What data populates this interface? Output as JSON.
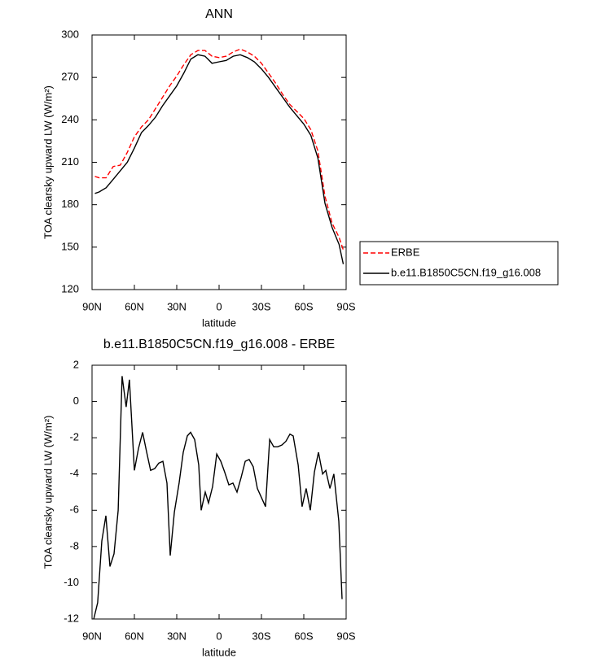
{
  "chart_data": [
    {
      "type": "line",
      "title": "ANN",
      "xlabel": "latitude",
      "ylabel": "TOA clearsky upward LW (W/m²)",
      "x": [
        88,
        85,
        80,
        75,
        70,
        65,
        60,
        55,
        50,
        45,
        40,
        35,
        30,
        25,
        20,
        15,
        10,
        5,
        0,
        -5,
        -10,
        -15,
        -20,
        -25,
        -30,
        -35,
        -40,
        -45,
        -50,
        -55,
        -60,
        -65,
        -70,
        -75,
        -80,
        -85,
        -88
      ],
      "series": [
        {
          "name": "ERBE",
          "color": "#ff0000",
          "dash": "dashed",
          "values": [
            200,
            199,
            199,
            207,
            208,
            217,
            228,
            235,
            240,
            248,
            256,
            264,
            271,
            279,
            286,
            289,
            289,
            285,
            284,
            285,
            288,
            290,
            288,
            285,
            280,
            273,
            266,
            258,
            251,
            246,
            241,
            233,
            218,
            186,
            167,
            157,
            148
          ]
        },
        {
          "name": "b.e11.B1850C5CN.f19_g16.008",
          "color": "#000000",
          "dash": "solid",
          "values": [
            188,
            189,
            192,
            198,
            204,
            210,
            220,
            231,
            236,
            242,
            250,
            257,
            264,
            273,
            283,
            286,
            285,
            280,
            281,
            282,
            285,
            286,
            284,
            281,
            276,
            270,
            263,
            256,
            249,
            243,
            237,
            229,
            213,
            181,
            164,
            152,
            138
          ]
        }
      ],
      "xlim": [
        90,
        -90
      ],
      "xticks": [
        {
          "value": 90,
          "label": "90N"
        },
        {
          "value": 60,
          "label": "60N"
        },
        {
          "value": 30,
          "label": "30N"
        },
        0,
        {
          "value": -30,
          "label": "30S"
        },
        {
          "value": -60,
          "label": "60S"
        },
        {
          "value": -90,
          "label": "90S"
        }
      ],
      "ylim": [
        120,
        300
      ],
      "yticks": [
        120,
        150,
        180,
        210,
        240,
        270,
        300
      ],
      "legend": "right"
    },
    {
      "type": "line",
      "title": "b.e11.B1850C5CN.f19_g16.008 - ERBE",
      "xlabel": "latitude",
      "ylabel": "TOA clearsky upward LW (W/m²)",
      "x": [
        88.8,
        86.0,
        83.1,
        80.2,
        77.3,
        74.4,
        71.5,
        68.7,
        65.8,
        63.5,
        60.0,
        57.1,
        54.2,
        51.3,
        48.5,
        45.6,
        42.7,
        39.8,
        36.9,
        34.6,
        31.7,
        28.3,
        25.4,
        22.5,
        20.2,
        17.3,
        14.4,
        12.7,
        9.8,
        7.5,
        4.6,
        1.7,
        -1.2,
        -4.0,
        -6.9,
        -9.8,
        -12.7,
        -15.6,
        -18.5,
        -21.3,
        -24.2,
        -27.1,
        -30.0,
        -32.9,
        -35.8,
        -38.7,
        -41.5,
        -44.4,
        -47.3,
        -50.2,
        -52.5,
        -56.0,
        -58.8,
        -61.7,
        -64.6,
        -67.5,
        -70.4,
        -73.3,
        -75.6,
        -78.5,
        -81.3,
        -84.8,
        -87.1
      ],
      "series": [
        {
          "color": "#000000",
          "dash": "solid",
          "values": [
            -12,
            -11.1,
            -7.7,
            -6.3,
            -9.1,
            -8.4,
            -6,
            1.4,
            -0.3,
            1.2,
            -3.8,
            -2.6,
            -1.7,
            -2.8,
            -3.8,
            -3.7,
            -3.4,
            -3.3,
            -4.5,
            -8.5,
            -6.1,
            -4.5,
            -2.8,
            -1.9,
            -1.7,
            -2.1,
            -3.5,
            -6,
            -5,
            -5.6,
            -4.7,
            -2.9,
            -3.3,
            -3.9,
            -4.6,
            -4.5,
            -5,
            -4.2,
            -3.3,
            -3.2,
            -3.6,
            -4.8,
            -5.3,
            -5.8,
            -2.1,
            -2.5,
            -2.5,
            -2.4,
            -2.2,
            -1.8,
            -1.9,
            -3.5,
            -5.8,
            -4.8,
            -6,
            -3.9,
            -2.8,
            -4,
            -3.8,
            -4.8,
            -4,
            -6.6,
            -10.9
          ]
        }
      ],
      "xlim": [
        90,
        -90
      ],
      "xticks": [
        {
          "value": 90,
          "label": "90N"
        },
        {
          "value": 60,
          "label": "60N"
        },
        {
          "value": 30,
          "label": "30N"
        },
        0,
        {
          "value": -30,
          "label": "30S"
        },
        {
          "value": -60,
          "label": "60S"
        },
        {
          "value": -90,
          "label": "90S"
        }
      ],
      "ylim": [
        -12,
        2
      ],
      "yticks": [
        -12,
        -10,
        -8,
        -6,
        -4,
        -2,
        0,
        2
      ]
    }
  ]
}
